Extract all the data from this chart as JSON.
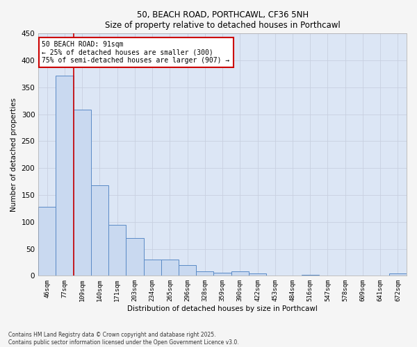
{
  "title1": "50, BEACH ROAD, PORTHCAWL, CF36 5NH",
  "title2": "Size of property relative to detached houses in Porthcawl",
  "xlabel": "Distribution of detached houses by size in Porthcawl",
  "ylabel": "Number of detached properties",
  "categories": [
    "46sqm",
    "77sqm",
    "109sqm",
    "140sqm",
    "171sqm",
    "203sqm",
    "234sqm",
    "265sqm",
    "296sqm",
    "328sqm",
    "359sqm",
    "390sqm",
    "422sqm",
    "453sqm",
    "484sqm",
    "516sqm",
    "547sqm",
    "578sqm",
    "609sqm",
    "641sqm",
    "672sqm"
  ],
  "values": [
    128,
    372,
    309,
    168,
    95,
    70,
    30,
    30,
    20,
    8,
    6,
    8,
    4,
    0,
    0,
    2,
    0,
    0,
    0,
    0,
    4
  ],
  "bar_color": "#c9d9f0",
  "bar_edge_color": "#5a8ac6",
  "red_line_x": 1.5,
  "annotation_text": "50 BEACH ROAD: 91sqm\n← 25% of detached houses are smaller (300)\n75% of semi-detached houses are larger (907) →",
  "annotation_box_color": "#ffffff",
  "annotation_box_edge": "#cc0000",
  "annotation_text_color": "#000000",
  "red_line_color": "#cc0000",
  "ylim": [
    0,
    450
  ],
  "yticks": [
    0,
    50,
    100,
    150,
    200,
    250,
    300,
    350,
    400,
    450
  ],
  "grid_color": "#c8d0e0",
  "bg_color": "#dce6f5",
  "fig_bg_color": "#f5f5f5",
  "footer1": "Contains HM Land Registry data © Crown copyright and database right 2025.",
  "footer2": "Contains public sector information licensed under the Open Government Licence v3.0."
}
